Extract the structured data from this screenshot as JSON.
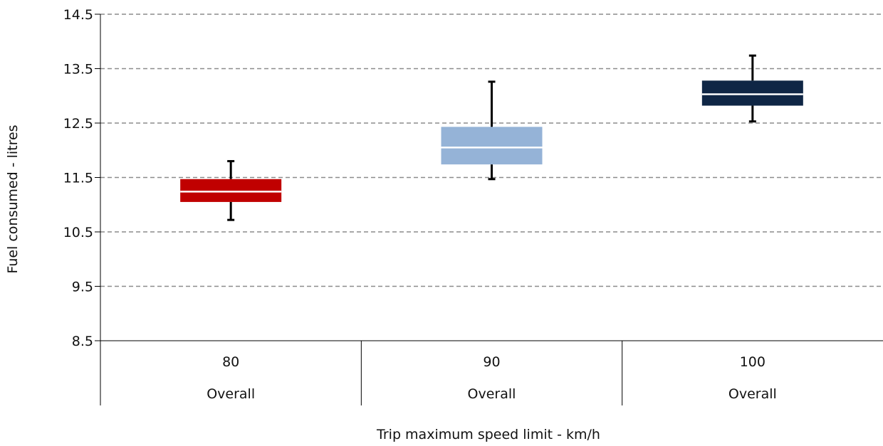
{
  "chart_data": {
    "type": "box",
    "xlabel": "Trip maximum speed limit - km/h",
    "ylabel": "Fuel consumed - litres",
    "ylim": [
      8.5,
      14.5
    ],
    "yticks": [
      "14.5",
      "13.5",
      "12.5",
      "11.5",
      "10.5",
      "9.5",
      "8.5"
    ],
    "grid": "horizontal dashed",
    "categories": [
      {
        "label": "80",
        "group": "Overall"
      },
      {
        "label": "90",
        "group": "Overall"
      },
      {
        "label": "100",
        "group": "Overall"
      }
    ],
    "boxes": [
      {
        "category": "80",
        "whisker_low": 10.72,
        "q1": 11.05,
        "median": 11.24,
        "q3": 11.47,
        "whisker_high": 11.8,
        "color": "#C00000"
      },
      {
        "category": "90",
        "whisker_low": 11.47,
        "q1": 11.74,
        "median": 12.05,
        "q3": 12.43,
        "whisker_high": 13.26,
        "color": "#95B3D7"
      },
      {
        "category": "100",
        "whisker_low": 12.53,
        "q1": 12.82,
        "median": 13.03,
        "q3": 13.28,
        "whisker_high": 13.74,
        "color": "#0F2645"
      }
    ]
  }
}
